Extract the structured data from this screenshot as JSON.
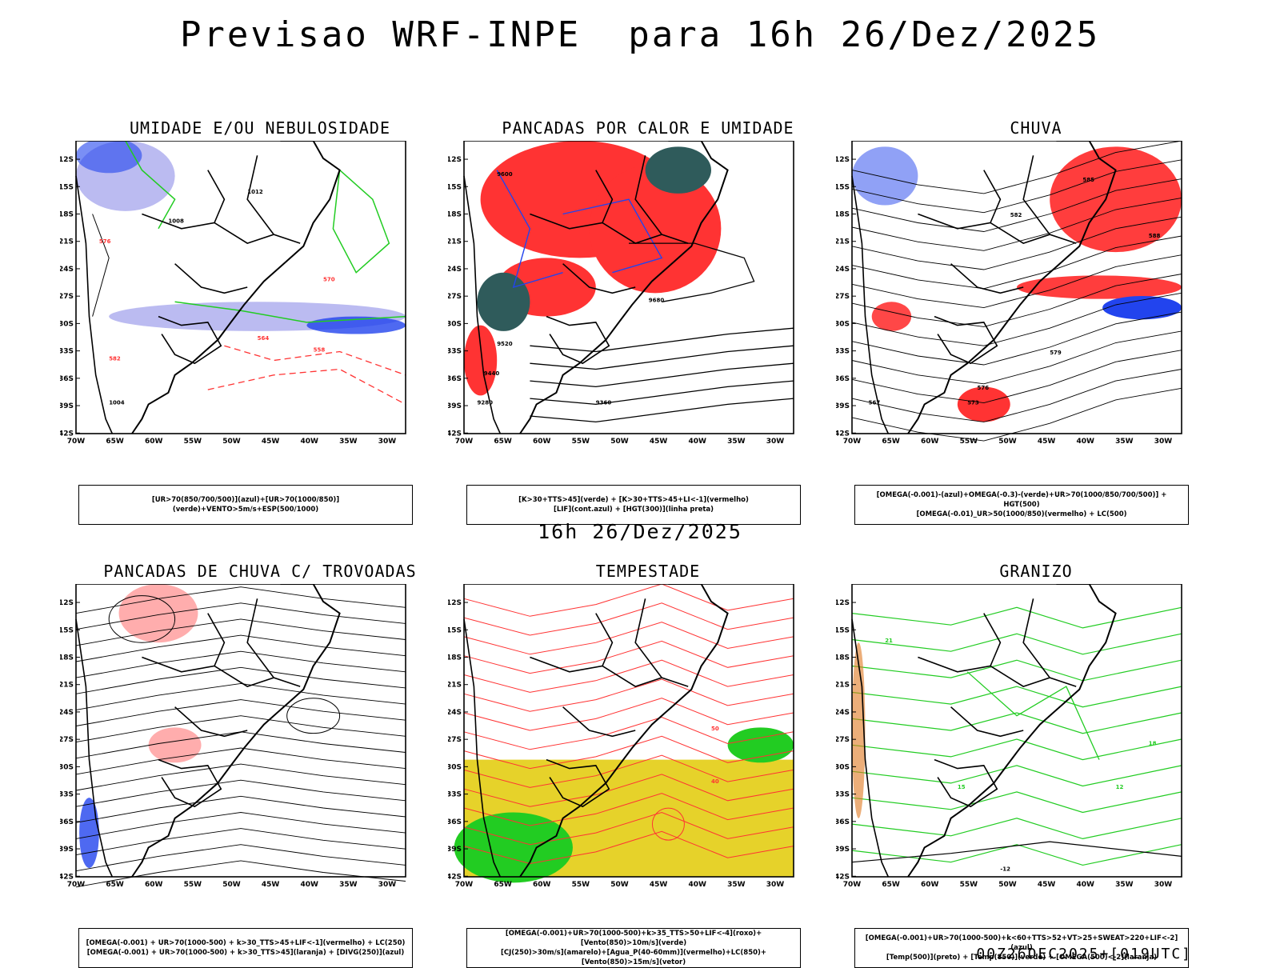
{
  "main_title": "Previsao WRF-INPE  para 16h 26/Dez/2025",
  "middle_time": "16h 26/Dez/2025",
  "footer_run": "00Z26DEC2025+[019UTC]",
  "lat_ticks": [
    "12S",
    "15S",
    "18S",
    "21S",
    "24S",
    "27S",
    "30S",
    "33S",
    "36S",
    "39S",
    "42S"
  ],
  "lon_ticks": [
    "70W",
    "65W",
    "60W",
    "55W",
    "50W",
    "45W",
    "40W",
    "35W",
    "30W"
  ],
  "panels": [
    {
      "id": "umidade",
      "title": "UMIDADE E/OU NEBULOSIDADE",
      "legend": [
        "[UR>70(850/700/500)](azul)+[UR>70(1000/850)](verde)+VENTO>5m/s+ESP(500/1000)"
      ],
      "labels": [
        "1012",
        "1008",
        "1004",
        "576",
        "570",
        "564",
        "558",
        "582"
      ]
    },
    {
      "id": "pancadas_calor",
      "title": "PANCADAS POR CALOR E UMIDADE",
      "legend": [
        "[K>30+TTS>45](verde) + [K>30+TTS>45+LI<-1](vermelho)",
        "[LIF](cont.azul) + [HGT(300)](linha preta)"
      ],
      "labels": [
        "9600",
        "9520",
        "9440",
        "9360",
        "9280",
        "9680"
      ]
    },
    {
      "id": "chuva",
      "title": "CHUVA",
      "legend": [
        "[OMEGA(-0.001)-(azul)+OMEGA(-0.3)-(verde)+UR>70(1000/850/700/500)] + HGT(500)",
        "[OMEGA(-0.01)_UR>50(1000/850)(vermelho) + LC(500)"
      ],
      "labels": [
        "585",
        "582",
        "579",
        "576",
        "573",
        "567",
        "588"
      ]
    },
    {
      "id": "trovoadas",
      "title": "PANCADAS DE CHUVA C/ TROVOADAS",
      "legend": [
        "[OMEGA(-0.001) + UR>70(1000-500) + k>30_TTS>45+LIF<-1](vermelho) + LC(250)",
        "[OMEGA(-0.001) + UR>70(1000-500) + k>30_TTS>45](laranja) + [DIVG(250)](azul)"
      ],
      "labels": []
    },
    {
      "id": "tempestade",
      "title": "TEMPESTADE",
      "legend": [
        "[OMEGA(-0.001)+UR>70(1000-500)+k>35_TTS>50+LIF<-4](roxo)+[Vento(850)>10m/s](verde)",
        "[CJ(250)>30m/s](amarelo)+[Agua_P(40-60mm)](vermelho)+LC(850)+[Vento(850)>15m/s](vetor)"
      ],
      "labels": [
        "40",
        "50"
      ]
    },
    {
      "id": "granizo",
      "title": "GRANIZO",
      "legend": [
        "[OMEGA(-0.001)+UR>70(1000-500)+k<60+TTS>52+VT>25+SWEAT>220+LIF<-2](azul)",
        "[Temp(500)](preto) + [Temp(850)](verde) + [OMEGA(500)<-2](laranja)"
      ],
      "labels": [
        "12",
        "15",
        "18",
        "21",
        "-12"
      ]
    }
  ],
  "colors": {
    "coast": "#000000",
    "red": "#ff3333",
    "green": "#22cc22",
    "blue": "#2244ee",
    "lavender": "#b4b4f0",
    "teal": "#2f5b5b",
    "yellow": "#e6d22a",
    "orange": "#e07820"
  }
}
